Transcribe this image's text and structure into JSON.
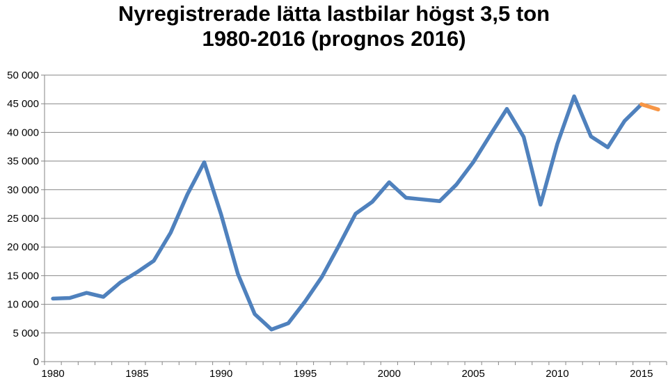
{
  "title": {
    "line1": "Nyregistrerade lätta lastbilar högst 3,5 ton",
    "line2": "1980-2016 (prognos 2016)"
  },
  "chart_data": {
    "type": "line",
    "title": "Nyregistrerade lätta lastbilar högst 3,5 ton 1980-2016 (prognos 2016)",
    "xlabel": "",
    "ylabel": "",
    "xlim": [
      1979.5,
      2016.5
    ],
    "ylim": [
      0,
      50000
    ],
    "grid": true,
    "legend": "none",
    "y_ticks": [
      {
        "value": 0,
        "label": "0"
      },
      {
        "value": 5000,
        "label": "5 000"
      },
      {
        "value": 10000,
        "label": "10 000"
      },
      {
        "value": 15000,
        "label": "15 000"
      },
      {
        "value": 20000,
        "label": "20 000"
      },
      {
        "value": 25000,
        "label": "25 000"
      },
      {
        "value": 30000,
        "label": "30 000"
      },
      {
        "value": 35000,
        "label": "35 000"
      },
      {
        "value": 40000,
        "label": "40 000"
      },
      {
        "value": 45000,
        "label": "45 000"
      },
      {
        "value": 50000,
        "label": "50 000"
      }
    ],
    "x_tick_labels": [
      {
        "value": 1980,
        "label": "1980"
      },
      {
        "value": 1985,
        "label": "1985"
      },
      {
        "value": 1990,
        "label": "1990"
      },
      {
        "value": 1995,
        "label": "1995"
      },
      {
        "value": 2000,
        "label": "2000"
      },
      {
        "value": 2005,
        "label": "2005"
      },
      {
        "value": 2010,
        "label": "2010"
      },
      {
        "value": 2015,
        "label": "2015"
      }
    ],
    "series": [
      {
        "color": "#4f81bd",
        "x": [
          1980,
          1981,
          1982,
          1983,
          1984,
          1985,
          1986,
          1987,
          1988,
          1989,
          1990,
          1991,
          1992,
          1993,
          1994,
          1995,
          1996,
          1997,
          1998,
          1999,
          2000,
          2001,
          2002,
          2003,
          2004,
          2005,
          2006,
          2007,
          2008,
          2009,
          2010,
          2011,
          2012,
          2013,
          2014,
          2015
        ],
        "y": [
          11000,
          11100,
          12000,
          11300,
          13800,
          15600,
          17600,
          22500,
          29200,
          34800,
          25700,
          15300,
          8300,
          5600,
          6700,
          10500,
          14800,
          20200,
          25800,
          27900,
          31300,
          28600,
          28300,
          28000,
          30900,
          34800,
          39500,
          44100,
          39200,
          27400,
          38000,
          46300,
          39300,
          37400,
          42000,
          44900
        ]
      },
      {
        "color": "#f79646",
        "x": [
          2015,
          2016
        ],
        "y": [
          44900,
          44000
        ]
      }
    ]
  }
}
